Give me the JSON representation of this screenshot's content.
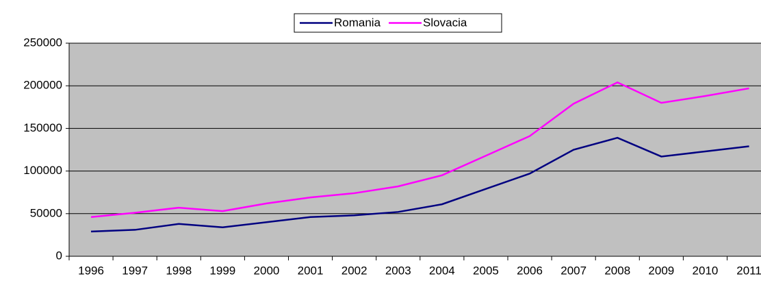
{
  "chart_data": {
    "type": "line",
    "categories": [
      "1996",
      "1997",
      "1998",
      "1999",
      "2000",
      "2001",
      "2002",
      "2003",
      "2004",
      "2005",
      "2006",
      "2007",
      "2008",
      "2009",
      "2010",
      "2011"
    ],
    "series": [
      {
        "name": "Romania",
        "color": "#000080",
        "values": [
          29000,
          31000,
          38000,
          34000,
          40000,
          46000,
          48000,
          52000,
          61000,
          79000,
          97000,
          125000,
          139000,
          117000,
          123000,
          129000
        ]
      },
      {
        "name": "Slovacia",
        "color": "#ff00ff",
        "values": [
          46000,
          51000,
          57000,
          53000,
          62000,
          69000,
          74000,
          82000,
          95000,
          118000,
          141000,
          179000,
          204000,
          180000,
          188000,
          197000
        ]
      }
    ],
    "ylim": [
      0,
      250000
    ],
    "yticks": [
      0,
      50000,
      100000,
      150000,
      200000,
      250000
    ],
    "grid": true,
    "legend": "top"
  }
}
